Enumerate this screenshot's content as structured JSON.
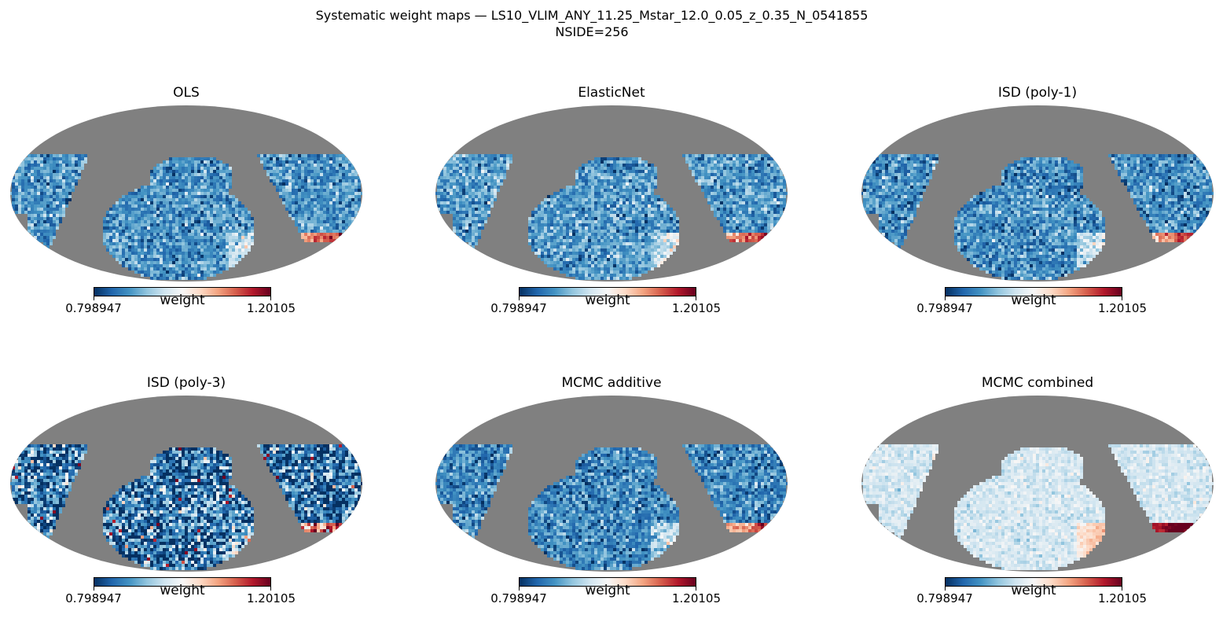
{
  "figure": {
    "title_line1": "Systematic weight maps — LS10_VLIM_ANY_11.25_Mstar_12.0_0.05_z_0.35_N_0541855",
    "title_line2": "NSIDE=256"
  },
  "colormap": {
    "name": "RdBu_r",
    "stops": [
      "#053061",
      "#2166ac",
      "#4393c3",
      "#92c5de",
      "#d1e5f0",
      "#f7f7f7",
      "#fddbc7",
      "#f4a582",
      "#d6604d",
      "#b2182b",
      "#67001f"
    ],
    "masked_color": "#808080"
  },
  "colorbar": {
    "label": "weight",
    "min_label": "0.798947",
    "max_label": "1.20105"
  },
  "chart_data": [
    {
      "type": "heatmap",
      "projection": "mollweide",
      "title": "OLS",
      "vmin": 0.798947,
      "vmax": 1.20105,
      "typical_weight": 0.88,
      "scatter": "low",
      "cbar_label": "weight"
    },
    {
      "type": "heatmap",
      "projection": "mollweide",
      "title": "ElasticNet",
      "vmin": 0.798947,
      "vmax": 1.20105,
      "typical_weight": 0.885,
      "scatter": "low",
      "cbar_label": "weight"
    },
    {
      "type": "heatmap",
      "projection": "mollweide",
      "title": "ISD (poly-1)",
      "vmin": 0.798947,
      "vmax": 1.20105,
      "typical_weight": 0.875,
      "scatter": "low",
      "cbar_label": "weight"
    },
    {
      "type": "heatmap",
      "projection": "mollweide",
      "title": "ISD (poly-3)",
      "vmin": 0.798947,
      "vmax": 1.20105,
      "typical_weight": 0.855,
      "scatter": "high",
      "cbar_label": "weight"
    },
    {
      "type": "heatmap",
      "projection": "mollweide",
      "title": "MCMC additive",
      "vmin": 0.798947,
      "vmax": 1.20105,
      "typical_weight": 0.87,
      "scatter": "low",
      "cbar_label": "weight"
    },
    {
      "type": "heatmap",
      "projection": "mollweide",
      "title": "MCMC combined",
      "vmin": 0.798947,
      "vmax": 1.20105,
      "typical_weight": 0.965,
      "scatter": "very-low",
      "cbar_label": "weight"
    }
  ]
}
